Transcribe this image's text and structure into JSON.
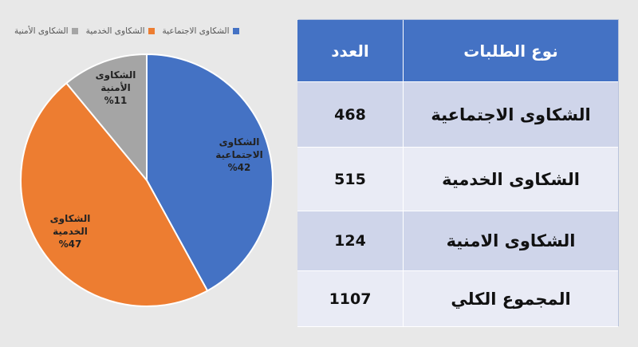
{
  "chart_data": {
    "type": "pie",
    "series": [
      {
        "name": "الشكاوى الاجتماعية",
        "value": 42,
        "label": [
          "الشكاوى",
          "الاجتماعية",
          "%42"
        ],
        "color": "#4472c4"
      },
      {
        "name": "الشكاوى الخدمية",
        "value": 47,
        "label": [
          "الشكاوى",
          "الخدمية",
          "%47"
        ],
        "color": "#ed7d31"
      },
      {
        "name": "الشكاوى الأمنية",
        "value": 11,
        "label": [
          "الشكاوى",
          "الأمنية",
          "%11"
        ],
        "color": "#a5a5a5"
      }
    ],
    "legend_position": "top"
  },
  "table": {
    "headers": {
      "type": "نوع الطلبات",
      "count": "العدد"
    },
    "rows": [
      {
        "type": "الشكاوى الاجتماعية",
        "count": "468"
      },
      {
        "type": "الشكاوى الخدمية",
        "count": "515"
      },
      {
        "type": "الشكاوى الامنية",
        "count": "124"
      },
      {
        "type": "المجموع الكلي",
        "count": "1107"
      }
    ]
  }
}
